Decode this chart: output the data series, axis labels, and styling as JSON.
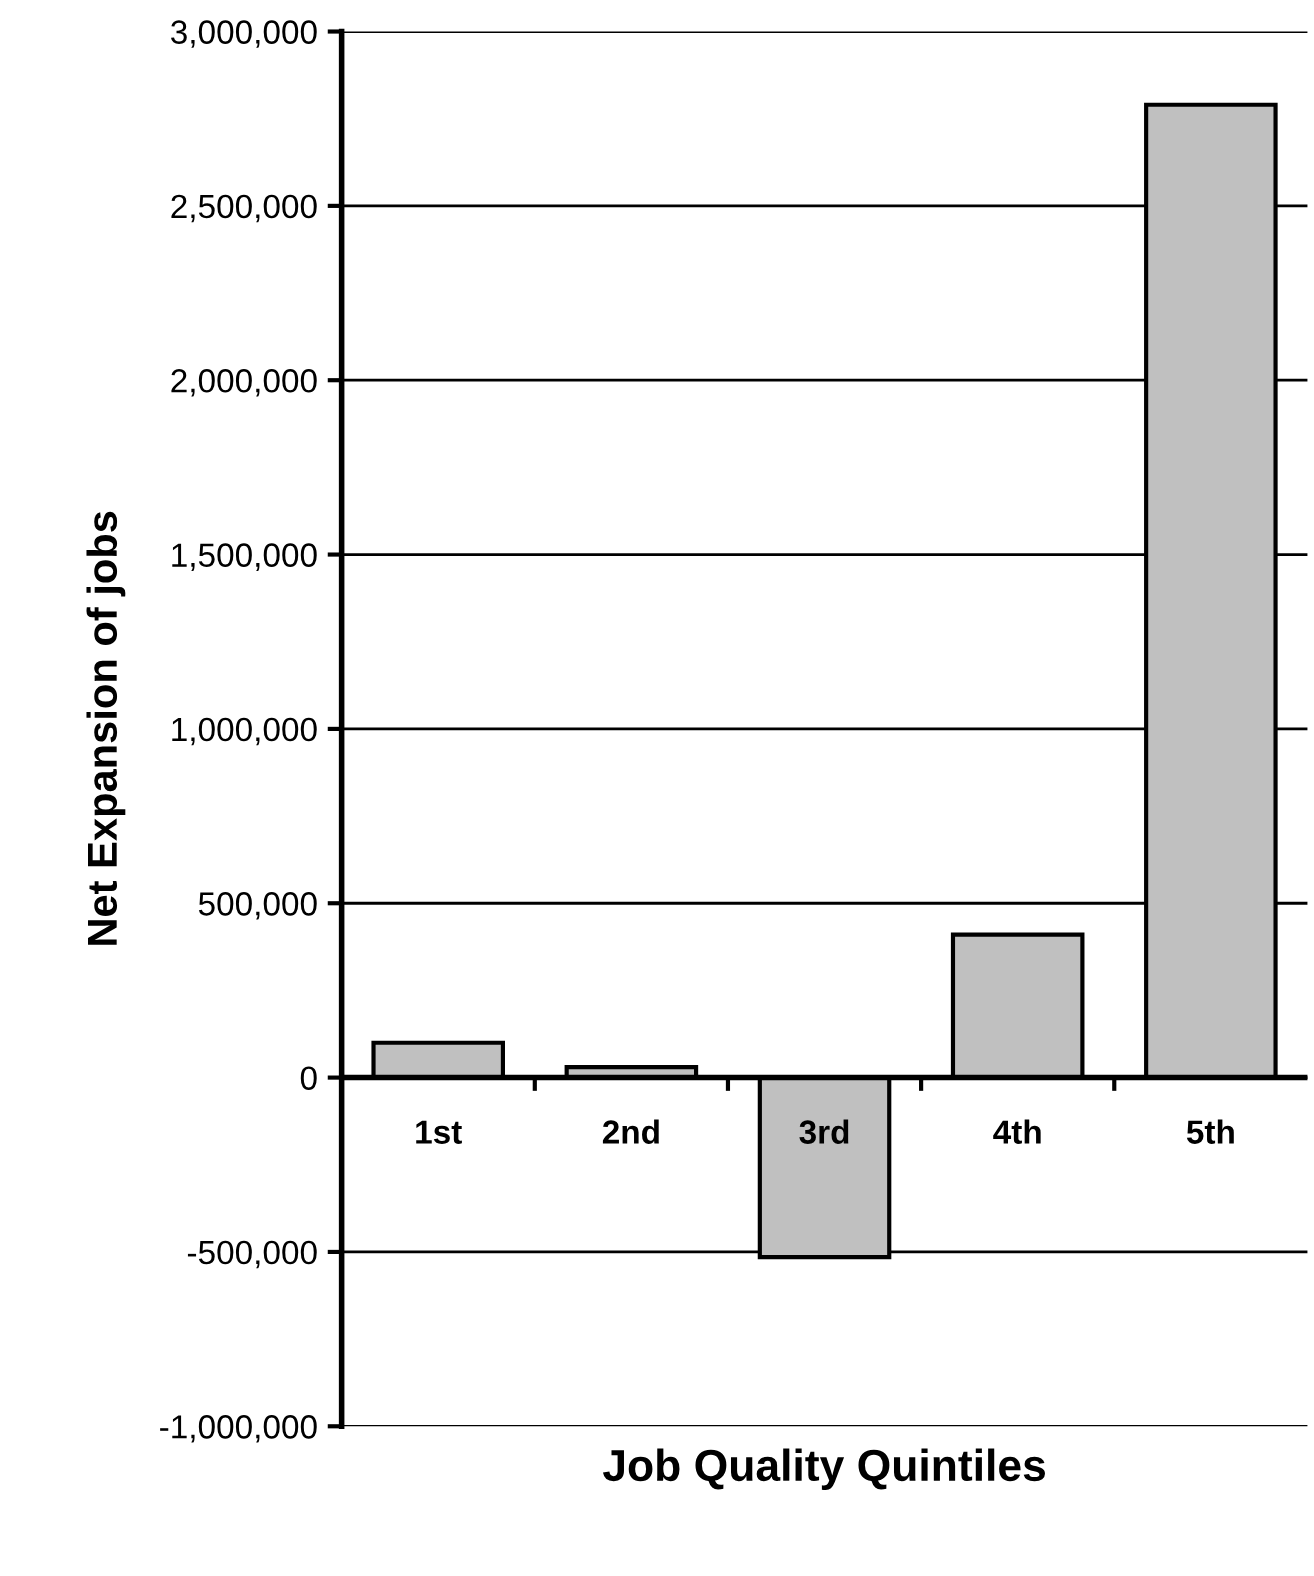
{
  "chart_data": {
    "type": "bar",
    "xlabel": "Job Quality Quintiles",
    "ylabel": "Net Expansion of jobs",
    "categories": [
      "1st",
      "2nd",
      "3rd",
      "4th",
      "5th"
    ],
    "values": [
      100000,
      30000,
      -515000,
      410000,
      2790000
    ],
    "color": "#c0c0c0",
    "ylim": [
      -1000000,
      3000000
    ],
    "yticks": [
      {
        "value": -1000000,
        "label": "-1,000,000"
      },
      {
        "value": -500000,
        "label": "-500,000"
      },
      0,
      {
        "value": 500000,
        "label": "500,000"
      },
      {
        "value": 1000000,
        "label": "1,000,000"
      },
      {
        "value": 1500000,
        "label": "1,500,000"
      },
      {
        "value": 2000000,
        "label": "2,000,000"
      },
      {
        "value": 2500000,
        "label": "2,500,000"
      },
      {
        "value": 3000000,
        "label": "3,000,000"
      }
    ],
    "grid": "y"
  }
}
